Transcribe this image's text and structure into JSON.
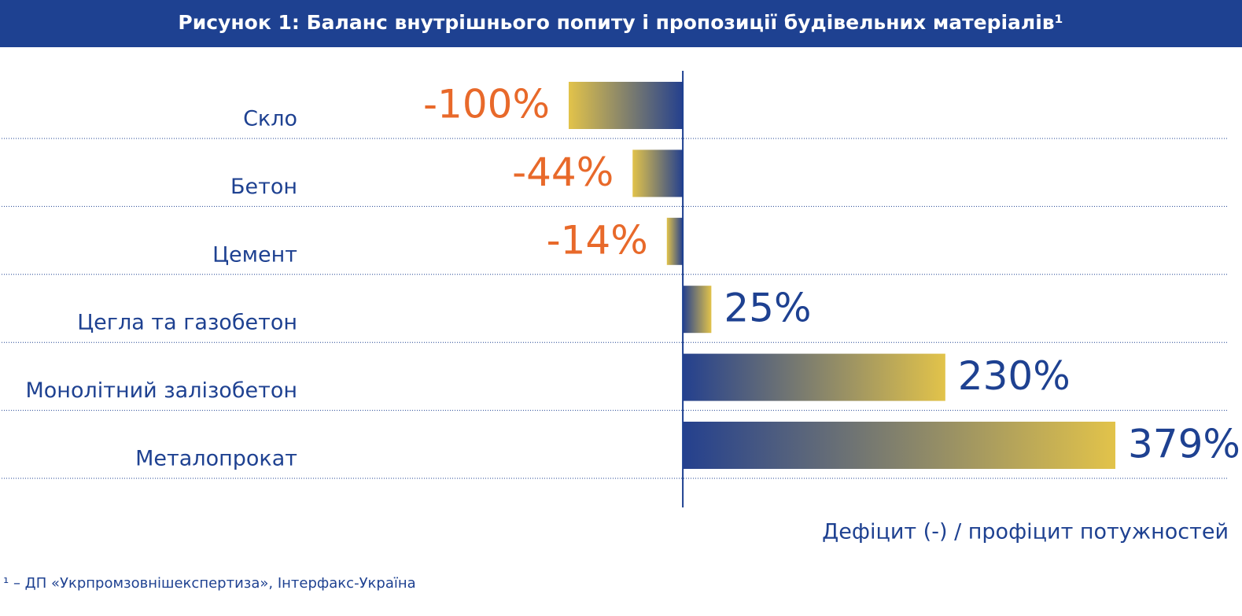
{
  "chart_data": {
    "type": "hbar",
    "title": "Рисунок 1: Баланс внутрішнього попиту і пропозиції будівельних матеріалів¹",
    "categories": [
      "Скло",
      "Бетон",
      "Цемент",
      "Цегла та газобетон",
      "Монолітний залізобетон",
      "Металопрокат"
    ],
    "values": [
      -100,
      -44,
      -14,
      25,
      230,
      379
    ],
    "value_labels": [
      "-100%",
      "-44%",
      "-14%",
      "25%",
      "230%",
      "379%"
    ],
    "xlim": [
      -100,
      379
    ],
    "x_label": "Дефіцит (-) / профіцит потужностей",
    "footnote": "¹ –  ДП «Укрпромзовнішекспертиза», Інтерфакс-Україна",
    "gradient": [
      "#24408e",
      "#e2c34a"
    ],
    "negative_label_color": "#e8692a",
    "positive_label_color": "#1e4191"
  }
}
